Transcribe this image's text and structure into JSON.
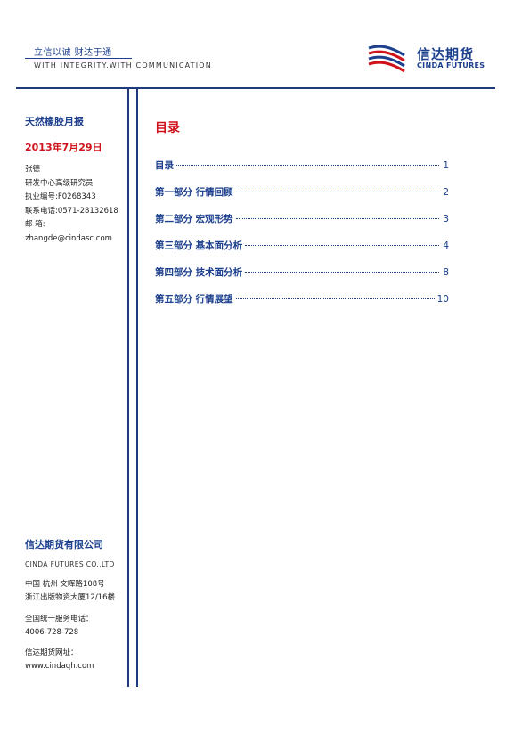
{
  "header": {
    "slogan_cn": "立信以诚  财达于通",
    "slogan_en": "WITH INTEGRITY.WITH COMMUNICATION",
    "logo_cn": "信达期货",
    "logo_en": "CINDA FUTURES"
  },
  "sidebar": {
    "report_title": "天然橡胶月报",
    "report_date": "2013年7月29日",
    "author_name": "张德",
    "author_role": "研发中心高级研究员",
    "license": "执业编号:F0268343",
    "phone": "联系电话:0571-28132618",
    "email_label": "邮      箱:",
    "email": "zhangde@cindasc.com",
    "company_name": "信达期货有限公司",
    "company_en": "CINDA FUTURES CO.,LTD",
    "address_line1": "中国  杭州  文晖路108号",
    "address_line2": "浙江出版物资大厦12/16楼",
    "service_label": "全国统一服务电话：",
    "service_number": "4006-728-728",
    "website_label": "信达期货网址：",
    "website": "www.cindaqh.com"
  },
  "toc": {
    "heading": "目录",
    "items": [
      {
        "label": "目录",
        "page": "1"
      },
      {
        "label": "第一部分  行情回顾",
        "page": "2"
      },
      {
        "label": "第二部分  宏观形势",
        "page": "3"
      },
      {
        "label": "第三部分  基本面分析",
        "page": "4"
      },
      {
        "label": "第四部分  技术面分析",
        "page": "8"
      },
      {
        "label": "第五部分  行情展望",
        "page": "10"
      }
    ]
  },
  "colors": {
    "brand_blue": "#1c3f8e",
    "accent_red": "#d0131b"
  },
  "icons": {
    "logo": "cinda-wave-logo-icon"
  }
}
